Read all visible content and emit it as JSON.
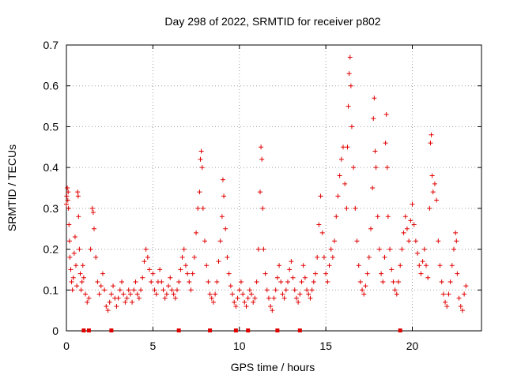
{
  "chart_data": {
    "type": "scatter",
    "title": "Day 298 of 2022, SRMTID for receiver p802",
    "xlabel": "GPS time / hours",
    "ylabel": "SRMTID / TECUs",
    "xlim": [
      0,
      24
    ],
    "ylim": [
      0,
      0.7
    ],
    "grid": true,
    "x_ticks": [
      "0",
      "5",
      "10",
      "15",
      "20"
    ],
    "y_ticks": [
      "0",
      "0.1",
      "0.2",
      "0.3",
      "0.4",
      "0.5",
      "0.6",
      "0.7"
    ],
    "marker": "plus",
    "color": "#e00000",
    "series": [
      {
        "name": "SRMTID",
        "points": [
          [
            0.0,
            0.31
          ],
          [
            0.02,
            0.33
          ],
          [
            0.05,
            0.35
          ],
          [
            0.08,
            0.32
          ],
          [
            0.1,
            0.34
          ],
          [
            0.12,
            0.3
          ],
          [
            0.15,
            0.26
          ],
          [
            0.18,
            0.22
          ],
          [
            0.2,
            0.18
          ],
          [
            0.25,
            0.15
          ],
          [
            0.3,
            0.12
          ],
          [
            0.35,
            0.1
          ],
          [
            0.4,
            0.13
          ],
          [
            0.45,
            0.19
          ],
          [
            0.5,
            0.23
          ],
          [
            0.55,
            0.16
          ],
          [
            0.6,
            0.11
          ],
          [
            0.65,
            0.34
          ],
          [
            0.68,
            0.33
          ],
          [
            0.7,
            0.28
          ],
          [
            0.75,
            0.2
          ],
          [
            0.8,
            0.14
          ],
          [
            0.85,
            0.1
          ],
          [
            0.9,
            0.12
          ],
          [
            0.95,
            0.16
          ],
          [
            1.0,
            0.13
          ],
          [
            1.1,
            0.09
          ],
          [
            1.2,
            0.07
          ],
          [
            1.3,
            0.08
          ],
          [
            1.4,
            0.2
          ],
          [
            1.5,
            0.3
          ],
          [
            1.55,
            0.29
          ],
          [
            1.6,
            0.25
          ],
          [
            1.7,
            0.18
          ],
          [
            1.8,
            0.12
          ],
          [
            1.9,
            0.09
          ],
          [
            2.0,
            0.11
          ],
          [
            2.1,
            0.14
          ],
          [
            2.2,
            0.1
          ],
          [
            2.3,
            0.06
          ],
          [
            2.4,
            0.05
          ],
          [
            2.5,
            0.07
          ],
          [
            2.6,
            0.09
          ],
          [
            2.7,
            0.11
          ],
          [
            2.8,
            0.08
          ],
          [
            2.9,
            0.06
          ],
          [
            3.0,
            0.08
          ],
          [
            3.1,
            0.1
          ],
          [
            3.2,
            0.12
          ],
          [
            3.3,
            0.09
          ],
          [
            3.4,
            0.07
          ],
          [
            3.5,
            0.08
          ],
          [
            3.6,
            0.1
          ],
          [
            3.7,
            0.09
          ],
          [
            3.8,
            0.07
          ],
          [
            3.9,
            0.1
          ],
          [
            4.0,
            0.12
          ],
          [
            4.1,
            0.09
          ],
          [
            4.2,
            0.08
          ],
          [
            4.3,
            0.1
          ],
          [
            4.4,
            0.13
          ],
          [
            4.5,
            0.17
          ],
          [
            4.6,
            0.2
          ],
          [
            4.7,
            0.18
          ],
          [
            4.8,
            0.15
          ],
          [
            4.9,
            0.12
          ],
          [
            5.0,
            0.14
          ],
          [
            5.1,
            0.1
          ],
          [
            5.2,
            0.09
          ],
          [
            5.3,
            0.12
          ],
          [
            5.4,
            0.15
          ],
          [
            5.5,
            0.12
          ],
          [
            5.6,
            0.1
          ],
          [
            5.7,
            0.08
          ],
          [
            5.8,
            0.09
          ],
          [
            5.9,
            0.11
          ],
          [
            6.0,
            0.13
          ],
          [
            6.1,
            0.1
          ],
          [
            6.2,
            0.09
          ],
          [
            6.3,
            0.08
          ],
          [
            6.4,
            0.1
          ],
          [
            6.5,
            0.12
          ],
          [
            6.6,
            0.15
          ],
          [
            6.7,
            0.18
          ],
          [
            6.8,
            0.2
          ],
          [
            6.9,
            0.16
          ],
          [
            7.0,
            0.14
          ],
          [
            7.1,
            0.12
          ],
          [
            7.2,
            0.1
          ],
          [
            7.3,
            0.14
          ],
          [
            7.4,
            0.18
          ],
          [
            7.5,
            0.24
          ],
          [
            7.6,
            0.3
          ],
          [
            7.7,
            0.34
          ],
          [
            7.75,
            0.42
          ],
          [
            7.8,
            0.44
          ],
          [
            7.85,
            0.4
          ],
          [
            7.9,
            0.3
          ],
          [
            8.0,
            0.22
          ],
          [
            8.1,
            0.16
          ],
          [
            8.2,
            0.12
          ],
          [
            8.3,
            0.09
          ],
          [
            8.4,
            0.08
          ],
          [
            8.5,
            0.07
          ],
          [
            8.6,
            0.09
          ],
          [
            8.7,
            0.12
          ],
          [
            8.8,
            0.17
          ],
          [
            8.9,
            0.22
          ],
          [
            9.0,
            0.28
          ],
          [
            9.05,
            0.37
          ],
          [
            9.1,
            0.33
          ],
          [
            9.2,
            0.25
          ],
          [
            9.3,
            0.18
          ],
          [
            9.4,
            0.14
          ],
          [
            9.5,
            0.11
          ],
          [
            9.6,
            0.09
          ],
          [
            9.7,
            0.07
          ],
          [
            9.8,
            0.06
          ],
          [
            9.9,
            0.08
          ],
          [
            10.0,
            0.1
          ],
          [
            10.1,
            0.12
          ],
          [
            10.2,
            0.09
          ],
          [
            10.3,
            0.07
          ],
          [
            10.4,
            0.06
          ],
          [
            10.5,
            0.08
          ],
          [
            10.6,
            0.1
          ],
          [
            10.7,
            0.09
          ],
          [
            10.8,
            0.07
          ],
          [
            10.9,
            0.08
          ],
          [
            11.0,
            0.12
          ],
          [
            11.1,
            0.2
          ],
          [
            11.2,
            0.34
          ],
          [
            11.25,
            0.45
          ],
          [
            11.3,
            0.42
          ],
          [
            11.35,
            0.3
          ],
          [
            11.4,
            0.2
          ],
          [
            11.5,
            0.14
          ],
          [
            11.6,
            0.1
          ],
          [
            11.7,
            0.08
          ],
          [
            11.8,
            0.06
          ],
          [
            11.9,
            0.05
          ],
          [
            12.0,
            0.08
          ],
          [
            12.1,
            0.1
          ],
          [
            12.2,
            0.13
          ],
          [
            12.3,
            0.16
          ],
          [
            12.4,
            0.12
          ],
          [
            12.5,
            0.09
          ],
          [
            12.6,
            0.08
          ],
          [
            12.7,
            0.1
          ],
          [
            12.8,
            0.12
          ],
          [
            12.9,
            0.15
          ],
          [
            13.0,
            0.17
          ],
          [
            13.1,
            0.13
          ],
          [
            13.2,
            0.1
          ],
          [
            13.3,
            0.08
          ],
          [
            13.4,
            0.07
          ],
          [
            13.5,
            0.09
          ],
          [
            13.6,
            0.12
          ],
          [
            13.7,
            0.16
          ],
          [
            13.8,
            0.13
          ],
          [
            13.9,
            0.1
          ],
          [
            14.0,
            0.09
          ],
          [
            14.1,
            0.08
          ],
          [
            14.2,
            0.1
          ],
          [
            14.3,
            0.12
          ],
          [
            14.4,
            0.14
          ],
          [
            14.5,
            0.18
          ],
          [
            14.6,
            0.26
          ],
          [
            14.7,
            0.33
          ],
          [
            14.8,
            0.24
          ],
          [
            14.9,
            0.18
          ],
          [
            15.0,
            0.14
          ],
          [
            15.1,
            0.12
          ],
          [
            15.2,
            0.16
          ],
          [
            15.3,
            0.2
          ],
          [
            15.4,
            0.18
          ],
          [
            15.5,
            0.22
          ],
          [
            15.6,
            0.28
          ],
          [
            15.7,
            0.33
          ],
          [
            15.8,
            0.38
          ],
          [
            15.9,
            0.42
          ],
          [
            16.0,
            0.45
          ],
          [
            16.1,
            0.36
          ],
          [
            16.2,
            0.3
          ],
          [
            16.25,
            0.45
          ],
          [
            16.3,
            0.55
          ],
          [
            16.35,
            0.63
          ],
          [
            16.4,
            0.67
          ],
          [
            16.45,
            0.6
          ],
          [
            16.5,
            0.5
          ],
          [
            16.6,
            0.4
          ],
          [
            16.7,
            0.3
          ],
          [
            16.8,
            0.22
          ],
          [
            16.9,
            0.16
          ],
          [
            17.0,
            0.12
          ],
          [
            17.1,
            0.1
          ],
          [
            17.2,
            0.09
          ],
          [
            17.3,
            0.11
          ],
          [
            17.4,
            0.14
          ],
          [
            17.5,
            0.18
          ],
          [
            17.6,
            0.25
          ],
          [
            17.7,
            0.35
          ],
          [
            17.75,
            0.52
          ],
          [
            17.8,
            0.57
          ],
          [
            17.85,
            0.44
          ],
          [
            17.9,
            0.4
          ],
          [
            18.0,
            0.28
          ],
          [
            18.1,
            0.2
          ],
          [
            18.2,
            0.14
          ],
          [
            18.3,
            0.12
          ],
          [
            18.4,
            0.18
          ],
          [
            18.45,
            0.46
          ],
          [
            18.5,
            0.53
          ],
          [
            18.55,
            0.4
          ],
          [
            18.6,
            0.28
          ],
          [
            18.7,
            0.2
          ],
          [
            18.8,
            0.15
          ],
          [
            18.9,
            0.12
          ],
          [
            19.0,
            0.1
          ],
          [
            19.1,
            0.09
          ],
          [
            19.2,
            0.12
          ],
          [
            19.3,
            0.16
          ],
          [
            19.4,
            0.2
          ],
          [
            19.5,
            0.24
          ],
          [
            19.6,
            0.28
          ],
          [
            19.7,
            0.25
          ],
          [
            19.8,
            0.22
          ],
          [
            19.9,
            0.27
          ],
          [
            20.0,
            0.31
          ],
          [
            20.1,
            0.26
          ],
          [
            20.2,
            0.22
          ],
          [
            20.3,
            0.19
          ],
          [
            20.4,
            0.16
          ],
          [
            20.5,
            0.14
          ],
          [
            20.6,
            0.17
          ],
          [
            20.7,
            0.2
          ],
          [
            20.8,
            0.16
          ],
          [
            20.9,
            0.13
          ],
          [
            21.0,
            0.3
          ],
          [
            21.05,
            0.46
          ],
          [
            21.1,
            0.48
          ],
          [
            21.15,
            0.38
          ],
          [
            21.2,
            0.34
          ],
          [
            21.3,
            0.36
          ],
          [
            21.4,
            0.32
          ],
          [
            21.5,
            0.22
          ],
          [
            21.6,
            0.16
          ],
          [
            21.7,
            0.12
          ],
          [
            21.8,
            0.09
          ],
          [
            21.9,
            0.07
          ],
          [
            22.0,
            0.06
          ],
          [
            22.1,
            0.09
          ],
          [
            22.2,
            0.12
          ],
          [
            22.3,
            0.16
          ],
          [
            22.4,
            0.2
          ],
          [
            22.5,
            0.24
          ],
          [
            22.55,
            0.22
          ],
          [
            22.6,
            0.14
          ],
          [
            22.7,
            0.08
          ],
          [
            22.8,
            0.06
          ],
          [
            22.9,
            0.05
          ],
          [
            23.0,
            0.09
          ],
          [
            23.1,
            0.11
          ]
        ]
      }
    ],
    "axis_markers": [
      1.0,
      1.3,
      2.6,
      6.5,
      8.3,
      9.8,
      10.5,
      12.2,
      13.5,
      19.3
    ]
  }
}
